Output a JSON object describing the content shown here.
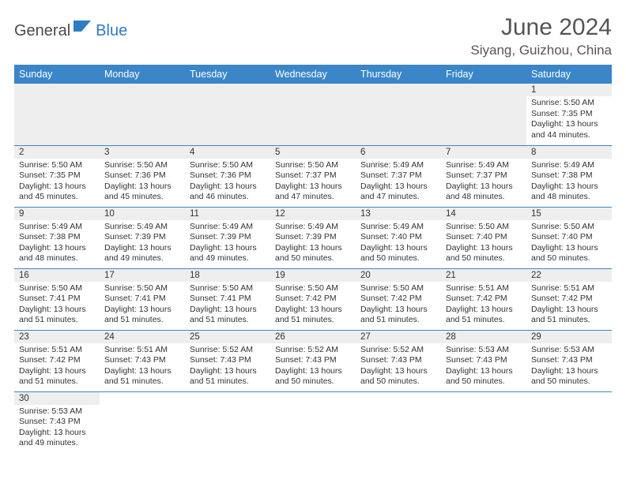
{
  "logo": {
    "text1": "General",
    "text2": "Blue"
  },
  "title": "June 2024",
  "location": "Siyang, Guizhou, China",
  "colors": {
    "header_bg": "#3a86c8",
    "header_text": "#ffffff",
    "daynum_bg": "#eeeeee",
    "cell_border": "#3a86c8",
    "logo_dark": "#4a4a4a",
    "logo_blue": "#2f7bc4"
  },
  "weekdays": [
    "Sunday",
    "Monday",
    "Tuesday",
    "Wednesday",
    "Thursday",
    "Friday",
    "Saturday"
  ],
  "weeks": [
    [
      null,
      null,
      null,
      null,
      null,
      null,
      {
        "n": "1",
        "sr": "5:50 AM",
        "ss": "7:35 PM",
        "dl": "13 hours and 44 minutes."
      }
    ],
    [
      {
        "n": "2",
        "sr": "5:50 AM",
        "ss": "7:35 PM",
        "dl": "13 hours and 45 minutes."
      },
      {
        "n": "3",
        "sr": "5:50 AM",
        "ss": "7:36 PM",
        "dl": "13 hours and 45 minutes."
      },
      {
        "n": "4",
        "sr": "5:50 AM",
        "ss": "7:36 PM",
        "dl": "13 hours and 46 minutes."
      },
      {
        "n": "5",
        "sr": "5:50 AM",
        "ss": "7:37 PM",
        "dl": "13 hours and 47 minutes."
      },
      {
        "n": "6",
        "sr": "5:49 AM",
        "ss": "7:37 PM",
        "dl": "13 hours and 47 minutes."
      },
      {
        "n": "7",
        "sr": "5:49 AM",
        "ss": "7:37 PM",
        "dl": "13 hours and 48 minutes."
      },
      {
        "n": "8",
        "sr": "5:49 AM",
        "ss": "7:38 PM",
        "dl": "13 hours and 48 minutes."
      }
    ],
    [
      {
        "n": "9",
        "sr": "5:49 AM",
        "ss": "7:38 PM",
        "dl": "13 hours and 48 minutes."
      },
      {
        "n": "10",
        "sr": "5:49 AM",
        "ss": "7:39 PM",
        "dl": "13 hours and 49 minutes."
      },
      {
        "n": "11",
        "sr": "5:49 AM",
        "ss": "7:39 PM",
        "dl": "13 hours and 49 minutes."
      },
      {
        "n": "12",
        "sr": "5:49 AM",
        "ss": "7:39 PM",
        "dl": "13 hours and 50 minutes."
      },
      {
        "n": "13",
        "sr": "5:49 AM",
        "ss": "7:40 PM",
        "dl": "13 hours and 50 minutes."
      },
      {
        "n": "14",
        "sr": "5:50 AM",
        "ss": "7:40 PM",
        "dl": "13 hours and 50 minutes."
      },
      {
        "n": "15",
        "sr": "5:50 AM",
        "ss": "7:40 PM",
        "dl": "13 hours and 50 minutes."
      }
    ],
    [
      {
        "n": "16",
        "sr": "5:50 AM",
        "ss": "7:41 PM",
        "dl": "13 hours and 51 minutes."
      },
      {
        "n": "17",
        "sr": "5:50 AM",
        "ss": "7:41 PM",
        "dl": "13 hours and 51 minutes."
      },
      {
        "n": "18",
        "sr": "5:50 AM",
        "ss": "7:41 PM",
        "dl": "13 hours and 51 minutes."
      },
      {
        "n": "19",
        "sr": "5:50 AM",
        "ss": "7:42 PM",
        "dl": "13 hours and 51 minutes."
      },
      {
        "n": "20",
        "sr": "5:50 AM",
        "ss": "7:42 PM",
        "dl": "13 hours and 51 minutes."
      },
      {
        "n": "21",
        "sr": "5:51 AM",
        "ss": "7:42 PM",
        "dl": "13 hours and 51 minutes."
      },
      {
        "n": "22",
        "sr": "5:51 AM",
        "ss": "7:42 PM",
        "dl": "13 hours and 51 minutes."
      }
    ],
    [
      {
        "n": "23",
        "sr": "5:51 AM",
        "ss": "7:42 PM",
        "dl": "13 hours and 51 minutes."
      },
      {
        "n": "24",
        "sr": "5:51 AM",
        "ss": "7:43 PM",
        "dl": "13 hours and 51 minutes."
      },
      {
        "n": "25",
        "sr": "5:52 AM",
        "ss": "7:43 PM",
        "dl": "13 hours and 51 minutes."
      },
      {
        "n": "26",
        "sr": "5:52 AM",
        "ss": "7:43 PM",
        "dl": "13 hours and 50 minutes."
      },
      {
        "n": "27",
        "sr": "5:52 AM",
        "ss": "7:43 PM",
        "dl": "13 hours and 50 minutes."
      },
      {
        "n": "28",
        "sr": "5:53 AM",
        "ss": "7:43 PM",
        "dl": "13 hours and 50 minutes."
      },
      {
        "n": "29",
        "sr": "5:53 AM",
        "ss": "7:43 PM",
        "dl": "13 hours and 50 minutes."
      }
    ],
    [
      {
        "n": "30",
        "sr": "5:53 AM",
        "ss": "7:43 PM",
        "dl": "13 hours and 49 minutes."
      },
      null,
      null,
      null,
      null,
      null,
      null
    ]
  ],
  "labels": {
    "sunrise": "Sunrise:",
    "sunset": "Sunset:",
    "daylight": "Daylight:"
  }
}
